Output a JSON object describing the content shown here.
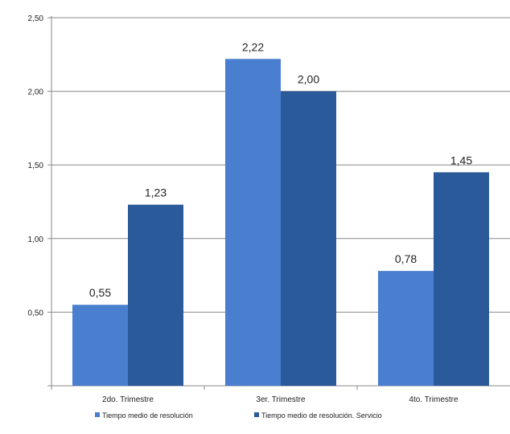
{
  "chart_data": {
    "type": "bar",
    "title": "",
    "xlabel": "",
    "ylabel": "",
    "categories": [
      "2do. Trimestre",
      "3er. Trimestre",
      "4to. Trimestre"
    ],
    "series": [
      {
        "name": "Tiempo medio de resolución",
        "values": [
          0.55,
          2.22,
          0.78
        ],
        "labels": [
          "0,55",
          "2,22",
          "0,78"
        ],
        "color": "#4a7fd0"
      },
      {
        "name": "Tiempo medio de resolución. Servicio",
        "values": [
          1.23,
          2.0,
          1.45
        ],
        "labels": [
          "1,23",
          "2,00",
          "1,45"
        ],
        "color": "#2b5a9a"
      }
    ],
    "ylim": [
      0,
      2.5
    ],
    "yticks": [
      {
        "value": 0.5,
        "label": "0,50"
      },
      {
        "value": 1.0,
        "label": "1,00"
      },
      {
        "value": 1.5,
        "label": "1,50"
      },
      {
        "value": 2.0,
        "label": "2,00"
      },
      {
        "value": 2.5,
        "label": "2,50"
      }
    ],
    "grid": true,
    "legend_position": "bottom"
  }
}
